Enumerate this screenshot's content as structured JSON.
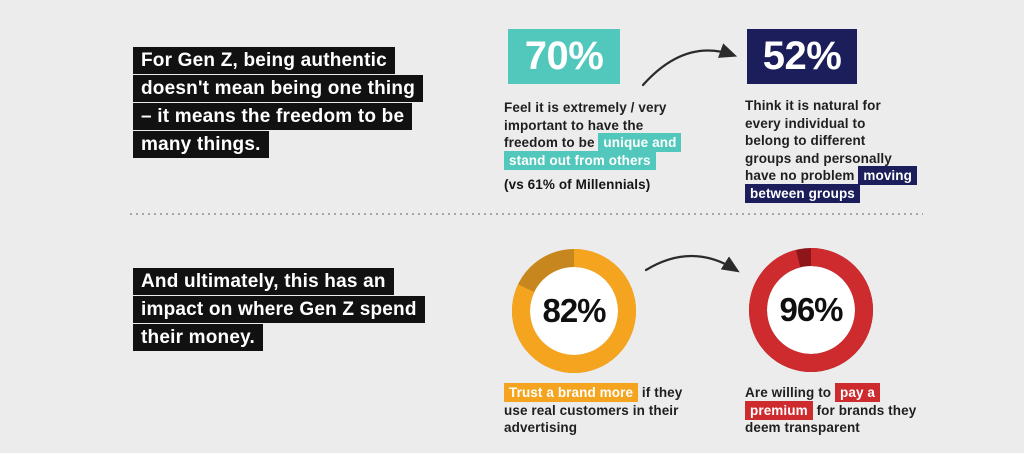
{
  "colors": {
    "background": "#ECECEC",
    "ink": "#111111",
    "text": "#1F1F1F",
    "teal": "#52C8BD",
    "navy": "#1B1E5A",
    "orange": "#F5A41F",
    "orange_dark": "#C8871E",
    "red": "#CE2B2F",
    "red_dark": "#8E1519",
    "divider_dot": "#A6A6A6",
    "arrow": "#2B2B2B",
    "donut_hole": "#FFFFFF"
  },
  "top": {
    "headline": "For Gen Z, being authentic\ndoesn't mean being one thing\n– it means the freedom to be\nmany things.",
    "stat70": {
      "value": "70%",
      "desc_parts": [
        {
          "text": "Feel it is extremely / very\nimportant to have the\nfreedom to be ",
          "hl": null
        },
        {
          "text": "unique and\nstand out from others",
          "hl": "teal"
        }
      ],
      "note": "(vs 61% of Millennials)"
    },
    "stat52": {
      "value": "52%",
      "desc_parts": [
        {
          "text": "Think it is natural for\nevery individual to\nbelong to different\ngroups and personally\nhave no problem ",
          "hl": null
        },
        {
          "text": "moving\nbetween groups",
          "hl": "navy"
        }
      ]
    }
  },
  "bottom": {
    "headline": "And ultimately, this has an\nimpact on where Gen Z spend\ntheir money.",
    "stat82": {
      "desc_parts": [
        {
          "text": "Trust a brand more",
          "hl": "orange"
        },
        {
          "text": " if they\nuse real customers in their\nadvertising",
          "hl": null
        }
      ]
    },
    "stat96": {
      "desc_parts": [
        {
          "text": "Are willing to ",
          "hl": null
        },
        {
          "text": "pay a\npremium",
          "hl": "red"
        },
        {
          "text": " for brands they\ndeem transparent",
          "hl": null
        }
      ]
    }
  },
  "chart_data": [
    {
      "type": "pie",
      "subtype": "donut",
      "title": "Trust a brand more if they use real customers in their advertising",
      "labels": [
        "Trust a brand more",
        "Remainder"
      ],
      "values": [
        82,
        18
      ],
      "colors": [
        "#F5A41F",
        "#C8871E"
      ],
      "center_label": "82%",
      "start_angle_deg": 0,
      "direction": "clockwise"
    },
    {
      "type": "pie",
      "subtype": "donut",
      "title": "Are willing to pay a premium for brands they deem transparent",
      "labels": [
        "Willing to pay a premium",
        "Remainder"
      ],
      "values": [
        96,
        4
      ],
      "colors": [
        "#CE2B2F",
        "#8E1519"
      ],
      "center_label": "96%",
      "start_angle_deg": 0,
      "direction": "clockwise"
    }
  ]
}
